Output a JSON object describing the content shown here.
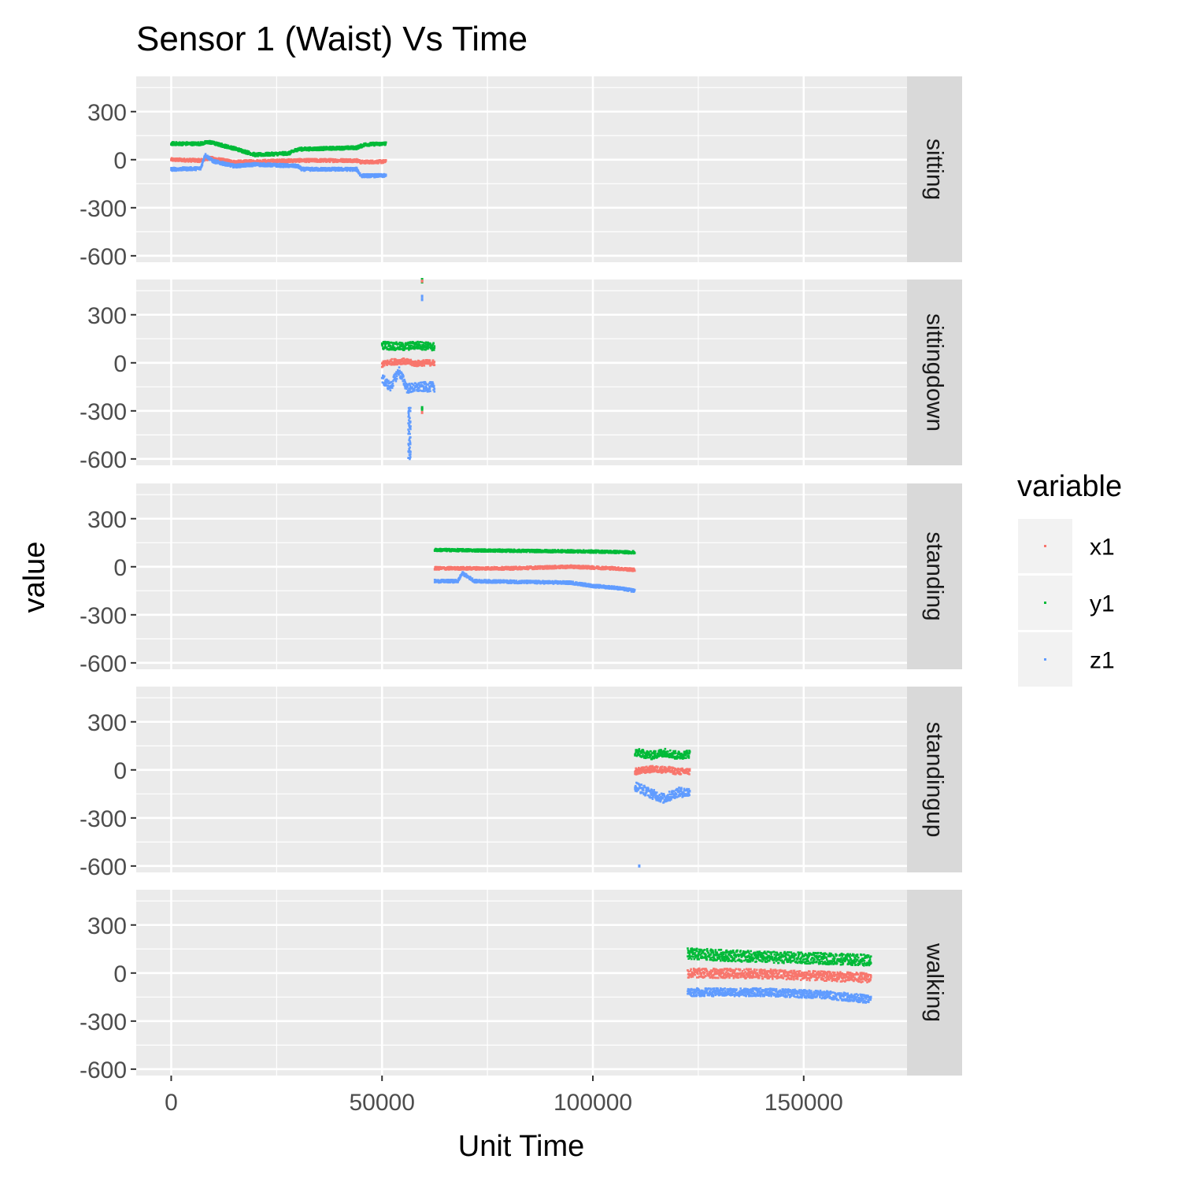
{
  "colors": {
    "panel_bg": "#EBEBEB",
    "strip_bg": "#D9D9D9",
    "grid": "#FFFFFF",
    "tick_text": "#4D4D4D",
    "text": "#000000",
    "legend_key_bg": "#F2F2F2"
  },
  "chart_data": {
    "type": "scatter",
    "title": "Sensor 1 (Waist) Vs Time",
    "xlabel": "Unit Time",
    "ylabel": "value",
    "xlim": [
      -8300,
      174500
    ],
    "ylim": [
      -640,
      520
    ],
    "x_ticks": [
      0,
      50000,
      100000,
      150000
    ],
    "x_tick_labels": [
      "0",
      "50000",
      "100000",
      "150000"
    ],
    "y_ticks": [
      300,
      0,
      -300,
      -600
    ],
    "y_tick_labels": [
      "300",
      "0",
      "-300",
      "-600"
    ],
    "x_minor_ticks": [
      25000,
      75000,
      125000
    ],
    "y_minor_ticks": [
      450,
      150,
      -150,
      -450
    ],
    "grid": true,
    "facets": [
      "sitting",
      "sittingdown",
      "standing",
      "standingup",
      "walking"
    ],
    "legend": {
      "title": "variable",
      "position": "right",
      "entries": [
        {
          "name": "x1",
          "color": "#F8766D"
        },
        {
          "name": "y1",
          "color": "#00BA38"
        },
        {
          "name": "z1",
          "color": "#619CFF"
        }
      ]
    },
    "series": [
      {
        "name": "x1",
        "color": "#F8766D",
        "facets": [
          {
            "facet": "sitting",
            "x_range": [
              0,
              51000
            ],
            "segments": [
              [
                0,
                0
              ],
              [
                7000,
                -5
              ],
              [
                9000,
                10
              ],
              [
                15000,
                -15
              ],
              [
                30000,
                -5
              ],
              [
                44000,
                -5
              ],
              [
                45000,
                -15
              ],
              [
                51000,
                -12
              ]
            ],
            "noise": 10
          },
          {
            "facet": "sittingdown",
            "x_range": [
              50000,
              62500
            ],
            "segments": [
              [
                50000,
                -10
              ],
              [
                52000,
                5
              ],
              [
                55000,
                10
              ],
              [
                58000,
                -5
              ],
              [
                60000,
                0
              ],
              [
                62500,
                0
              ]
            ],
            "noise": 18
          },
          {
            "facet": "standing",
            "x_range": [
              62500,
              110000
            ],
            "segments": [
              [
                62500,
                -10
              ],
              [
                80000,
                -10
              ],
              [
                95000,
                0
              ],
              [
                105000,
                -10
              ],
              [
                110000,
                -20
              ]
            ],
            "noise": 9
          },
          {
            "facet": "standingup",
            "x_range": [
              110000,
              123000
            ],
            "segments": [
              [
                110000,
                -10
              ],
              [
                114000,
                5
              ],
              [
                118000,
                0
              ],
              [
                120000,
                -10
              ],
              [
                123000,
                -10
              ]
            ],
            "noise": 20
          },
          {
            "facet": "walking",
            "x_range": [
              122500,
              166000
            ],
            "segments": [
              [
                122500,
                0
              ],
              [
                140000,
                -5
              ],
              [
                155000,
                -20
              ],
              [
                166000,
                -30
              ]
            ],
            "noise": 30
          }
        ]
      },
      {
        "name": "y1",
        "color": "#00BA38",
        "facets": [
          {
            "facet": "sitting",
            "x_range": [
              0,
              51000
            ],
            "segments": [
              [
                0,
                100
              ],
              [
                7000,
                100
              ],
              [
                9000,
                110
              ],
              [
                15000,
                70
              ],
              [
                20000,
                30
              ],
              [
                28000,
                40
              ],
              [
                30000,
                65
              ],
              [
                44000,
                75
              ],
              [
                46000,
                95
              ],
              [
                51000,
                100
              ]
            ],
            "noise": 10
          },
          {
            "facet": "sittingdown",
            "x_range": [
              50000,
              62500
            ],
            "segments": [
              [
                50000,
                110
              ],
              [
                55000,
                100
              ],
              [
                58000,
                110
              ],
              [
                62500,
                100
              ]
            ],
            "noise": 25
          },
          {
            "facet": "standing",
            "x_range": [
              62500,
              110000
            ],
            "segments": [
              [
                62500,
                105
              ],
              [
                80000,
                100
              ],
              [
                100000,
                95
              ],
              [
                110000,
                90
              ]
            ],
            "noise": 8
          },
          {
            "facet": "standingup",
            "x_range": [
              110000,
              123000
            ],
            "segments": [
              [
                110000,
                110
              ],
              [
                114000,
                90
              ],
              [
                117000,
                110
              ],
              [
                120000,
                90
              ],
              [
                123000,
                100
              ]
            ],
            "noise": 25
          },
          {
            "facet": "walking",
            "x_range": [
              122500,
              166000
            ],
            "segments": [
              [
                122500,
                120
              ],
              [
                140000,
                100
              ],
              [
                155000,
                90
              ],
              [
                166000,
                80
              ]
            ],
            "noise": 35
          }
        ]
      },
      {
        "name": "z1",
        "color": "#619CFF",
        "facets": [
          {
            "facet": "sitting",
            "x_range": [
              0,
              51000
            ],
            "segments": [
              [
                0,
                -60
              ],
              [
                7000,
                -55
              ],
              [
                8000,
                30
              ],
              [
                10000,
                -10
              ],
              [
                15000,
                -40
              ],
              [
                20000,
                -30
              ],
              [
                30000,
                -40
              ],
              [
                31000,
                -60
              ],
              [
                44000,
                -60
              ],
              [
                45000,
                -100
              ],
              [
                51000,
                -100
              ]
            ],
            "noise": 10
          },
          {
            "facet": "sittingdown",
            "x_range": [
              50000,
              62500
            ],
            "segments": [
              [
                50000,
                -100
              ],
              [
                52000,
                -150
              ],
              [
                54000,
                -50
              ],
              [
                56000,
                -160
              ],
              [
                60000,
                -150
              ],
              [
                62500,
                -150
              ]
            ],
            "noise": 30
          },
          {
            "facet": "standing",
            "x_range": [
              62500,
              110000
            ],
            "segments": [
              [
                62500,
                -90
              ],
              [
                68000,
                -90
              ],
              [
                69000,
                -40
              ],
              [
                72000,
                -90
              ],
              [
                95000,
                -100
              ],
              [
                100000,
                -120
              ],
              [
                105000,
                -130
              ],
              [
                110000,
                -150
              ]
            ],
            "noise": 9
          },
          {
            "facet": "standingup",
            "x_range": [
              110000,
              123000
            ],
            "segments": [
              [
                110000,
                -100
              ],
              [
                114000,
                -150
              ],
              [
                117000,
                -180
              ],
              [
                120000,
                -140
              ],
              [
                123000,
                -140
              ]
            ],
            "noise": 30
          },
          {
            "facet": "walking",
            "x_range": [
              122500,
              166000
            ],
            "segments": [
              [
                122500,
                -120
              ],
              [
                140000,
                -120
              ],
              [
                155000,
                -135
              ],
              [
                166000,
                -165
              ]
            ],
            "noise": 25
          }
        ]
      }
    ],
    "outliers": [
      {
        "series": "y1",
        "facet": "sittingdown",
        "x": 59500,
        "y": [
          520,
          505,
          -280,
          -290
        ]
      },
      {
        "series": "x1",
        "facet": "sittingdown",
        "x": 59500,
        "y": [
          510,
          -310
        ]
      },
      {
        "series": "z1",
        "facet": "sittingdown",
        "x": 59500,
        "y": [
          415,
          395
        ]
      },
      {
        "series": "z1",
        "facet": "sittingdown",
        "x_range": [
          56200,
          56800
        ],
        "y_range": [
          -610,
          -280
        ]
      },
      {
        "series": "z1",
        "facet": "standingup",
        "x": 111000,
        "y": [
          -600
        ]
      }
    ]
  }
}
